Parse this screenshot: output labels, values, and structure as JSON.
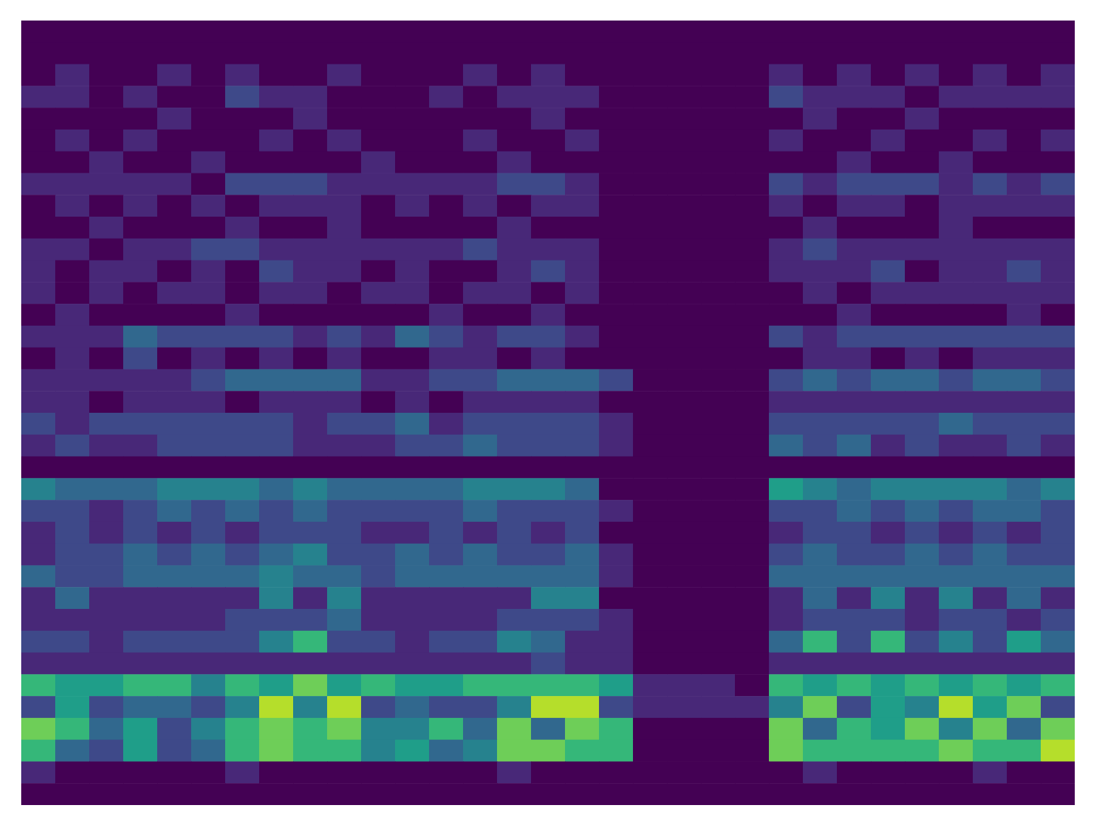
{
  "chart_data": {
    "type": "heatmap",
    "zlim": [
      0,
      9
    ],
    "tick_labels": false,
    "z": [
      [
        0,
        0,
        0,
        0,
        0,
        0,
        0,
        0,
        0,
        0,
        0,
        0,
        0,
        0,
        0,
        0,
        0,
        0,
        0,
        0,
        0,
        0,
        0,
        0,
        0,
        0,
        0,
        0,
        0,
        0,
        0
      ],
      [
        0,
        0,
        0,
        0,
        0,
        0,
        0,
        0,
        0,
        0,
        0,
        0,
        0,
        0,
        0,
        0,
        0,
        0,
        0,
        0,
        0,
        0,
        0,
        0,
        0,
        0,
        0,
        0,
        0,
        0,
        0
      ],
      [
        0,
        1,
        0,
        0,
        1,
        0,
        1,
        0,
        0,
        1,
        0,
        0,
        0,
        1,
        0,
        1,
        0,
        0,
        0,
        0,
        0,
        0,
        1,
        0,
        1,
        0,
        1,
        0,
        1,
        0,
        1
      ],
      [
        1,
        1,
        0,
        1,
        0,
        0,
        2,
        1,
        1,
        0,
        0,
        0,
        1,
        0,
        1,
        1,
        1,
        0,
        0,
        0,
        0,
        0,
        2,
        1,
        1,
        1,
        0,
        1,
        1,
        1,
        1
      ],
      [
        0,
        0,
        0,
        0,
        1,
        0,
        0,
        0,
        1,
        0,
        0,
        0,
        0,
        0,
        0,
        1,
        0,
        0,
        0,
        0,
        0,
        0,
        0,
        1,
        0,
        0,
        1,
        0,
        0,
        0,
        0
      ],
      [
        0,
        1,
        0,
        1,
        0,
        0,
        0,
        1,
        0,
        1,
        0,
        0,
        0,
        1,
        0,
        0,
        1,
        0,
        0,
        0,
        0,
        0,
        1,
        0,
        0,
        1,
        0,
        0,
        1,
        0,
        1
      ],
      [
        0,
        0,
        1,
        0,
        0,
        1,
        0,
        0,
        0,
        0,
        1,
        0,
        0,
        0,
        1,
        0,
        0,
        0,
        0,
        0,
        0,
        0,
        0,
        0,
        1,
        0,
        0,
        1,
        0,
        0,
        0
      ],
      [
        1,
        1,
        1,
        1,
        1,
        0,
        2,
        2,
        2,
        1,
        1,
        1,
        1,
        1,
        2,
        2,
        1,
        0,
        0,
        0,
        0,
        0,
        2,
        1,
        2,
        2,
        2,
        1,
        2,
        1,
        2
      ],
      [
        0,
        1,
        0,
        1,
        0,
        1,
        0,
        1,
        1,
        1,
        0,
        1,
        0,
        1,
        0,
        1,
        1,
        0,
        0,
        0,
        0,
        0,
        1,
        0,
        1,
        1,
        0,
        1,
        1,
        1,
        1
      ],
      [
        0,
        0,
        1,
        0,
        0,
        0,
        1,
        0,
        0,
        1,
        0,
        0,
        0,
        0,
        1,
        0,
        0,
        0,
        0,
        0,
        0,
        0,
        0,
        1,
        0,
        0,
        0,
        1,
        0,
        0,
        0
      ],
      [
        1,
        1,
        0,
        1,
        1,
        2,
        2,
        1,
        1,
        1,
        1,
        1,
        1,
        2,
        1,
        1,
        1,
        0,
        0,
        0,
        0,
        0,
        1,
        2,
        1,
        1,
        1,
        1,
        1,
        1,
        1
      ],
      [
        1,
        0,
        1,
        1,
        0,
        1,
        0,
        2,
        1,
        1,
        0,
        1,
        0,
        0,
        1,
        2,
        1,
        0,
        0,
        0,
        0,
        0,
        1,
        1,
        1,
        2,
        0,
        1,
        1,
        2,
        1
      ],
      [
        1,
        0,
        1,
        0,
        1,
        1,
        0,
        1,
        1,
        0,
        1,
        1,
        0,
        1,
        1,
        0,
        1,
        0,
        0,
        0,
        0,
        0,
        0,
        1,
        0,
        1,
        1,
        1,
        1,
        1,
        1
      ],
      [
        0,
        1,
        0,
        0,
        0,
        0,
        1,
        0,
        0,
        0,
        0,
        0,
        1,
        0,
        0,
        1,
        0,
        0,
        0,
        0,
        0,
        0,
        0,
        0,
        1,
        0,
        0,
        0,
        0,
        1,
        0
      ],
      [
        1,
        1,
        1,
        3,
        2,
        2,
        2,
        2,
        1,
        2,
        1,
        3,
        2,
        1,
        2,
        2,
        1,
        0,
        0,
        0,
        0,
        0,
        2,
        1,
        2,
        2,
        2,
        2,
        2,
        2,
        2
      ],
      [
        0,
        1,
        0,
        2,
        0,
        1,
        0,
        1,
        0,
        1,
        0,
        0,
        1,
        1,
        0,
        1,
        0,
        0,
        0,
        0,
        0,
        0,
        0,
        1,
        1,
        0,
        1,
        0,
        1,
        1,
        1
      ],
      [
        1,
        1,
        1,
        1,
        1,
        2,
        3,
        3,
        3,
        3,
        1,
        1,
        2,
        2,
        3,
        3,
        3,
        2,
        0,
        0,
        0,
        0,
        2,
        3,
        2,
        3,
        3,
        2,
        3,
        3,
        2
      ],
      [
        1,
        1,
        0,
        1,
        1,
        1,
        0,
        1,
        1,
        1,
        0,
        1,
        0,
        1,
        1,
        1,
        1,
        0,
        0,
        0,
        0,
        0,
        1,
        1,
        1,
        1,
        1,
        1,
        1,
        1,
        1
      ],
      [
        2,
        1,
        2,
        2,
        2,
        2,
        2,
        2,
        1,
        2,
        2,
        3,
        1,
        2,
        2,
        2,
        2,
        1,
        0,
        0,
        0,
        0,
        2,
        2,
        2,
        2,
        2,
        3,
        2,
        2,
        2
      ],
      [
        1,
        2,
        1,
        1,
        2,
        2,
        2,
        2,
        1,
        1,
        1,
        2,
        2,
        3,
        2,
        2,
        2,
        1,
        0,
        0,
        0,
        0,
        3,
        2,
        3,
        1,
        2,
        1,
        1,
        2,
        1
      ],
      [
        0,
        0,
        0,
        0,
        0,
        0,
        0,
        0,
        0,
        0,
        0,
        0,
        0,
        0,
        0,
        0,
        0,
        0,
        0,
        0,
        0,
        0,
        0,
        0,
        0,
        0,
        0,
        0,
        0,
        0,
        0
      ],
      [
        4,
        3,
        3,
        3,
        4,
        4,
        4,
        3,
        4,
        3,
        3,
        3,
        3,
        4,
        4,
        4,
        3,
        0,
        0,
        0,
        0,
        0,
        5,
        4,
        3,
        4,
        4,
        4,
        4,
        3,
        4
      ],
      [
        2,
        2,
        1,
        2,
        3,
        2,
        3,
        2,
        3,
        2,
        2,
        2,
        2,
        3,
        2,
        2,
        2,
        1,
        0,
        0,
        0,
        0,
        2,
        2,
        3,
        2,
        3,
        2,
        3,
        3,
        2
      ],
      [
        1,
        2,
        1,
        2,
        1,
        2,
        1,
        2,
        2,
        2,
        1,
        1,
        2,
        1,
        2,
        1,
        2,
        0,
        0,
        0,
        0,
        0,
        1,
        2,
        2,
        1,
        2,
        1,
        2,
        1,
        2
      ],
      [
        1,
        2,
        2,
        3,
        2,
        3,
        2,
        3,
        4,
        2,
        2,
        3,
        2,
        3,
        2,
        2,
        3,
        1,
        0,
        0,
        0,
        0,
        2,
        3,
        2,
        2,
        3,
        2,
        3,
        2,
        2
      ],
      [
        3,
        2,
        2,
        3,
        3,
        3,
        3,
        4,
        3,
        3,
        2,
        3,
        3,
        3,
        3,
        3,
        3,
        1,
        0,
        0,
        0,
        0,
        3,
        3,
        3,
        3,
        3,
        3,
        3,
        3,
        3
      ],
      [
        1,
        3,
        1,
        1,
        1,
        1,
        1,
        4,
        1,
        4,
        1,
        1,
        1,
        1,
        1,
        4,
        4,
        0,
        0,
        0,
        0,
        0,
        1,
        3,
        1,
        4,
        1,
        4,
        1,
        3,
        1
      ],
      [
        1,
        1,
        1,
        1,
        1,
        1,
        2,
        2,
        2,
        3,
        1,
        1,
        1,
        1,
        2,
        2,
        2,
        1,
        0,
        0,
        0,
        0,
        1,
        2,
        2,
        2,
        1,
        2,
        2,
        1,
        2
      ],
      [
        2,
        2,
        1,
        2,
        2,
        2,
        2,
        4,
        6,
        2,
        2,
        1,
        2,
        2,
        4,
        3,
        1,
        1,
        0,
        0,
        0,
        0,
        3,
        6,
        2,
        6,
        2,
        4,
        2,
        5,
        3
      ],
      [
        1,
        1,
        1,
        1,
        1,
        1,
        1,
        1,
        1,
        1,
        1,
        1,
        1,
        1,
        1,
        2,
        1,
        1,
        0,
        0,
        0,
        0,
        1,
        1,
        1,
        1,
        1,
        1,
        1,
        1,
        1
      ],
      [
        6,
        5,
        5,
        6,
        6,
        4,
        6,
        5,
        7,
        5,
        6,
        5,
        5,
        6,
        6,
        6,
        6,
        5,
        1,
        1,
        1,
        0,
        6,
        5,
        6,
        5,
        6,
        5,
        6,
        5,
        6
      ],
      [
        2,
        5,
        2,
        3,
        3,
        2,
        4,
        8,
        4,
        8,
        2,
        3,
        2,
        2,
        4,
        8,
        8,
        2,
        1,
        1,
        1,
        1,
        4,
        7,
        2,
        5,
        4,
        8,
        5,
        7,
        2
      ],
      [
        7,
        6,
        3,
        5,
        2,
        4,
        6,
        7,
        6,
        7,
        4,
        4,
        6,
        3,
        7,
        3,
        7,
        6,
        0,
        0,
        0,
        0,
        7,
        3,
        6,
        5,
        7,
        4,
        7,
        3,
        7
      ],
      [
        6,
        3,
        2,
        5,
        2,
        3,
        6,
        7,
        6,
        6,
        4,
        5,
        3,
        4,
        7,
        7,
        6,
        6,
        0,
        0,
        0,
        0,
        7,
        6,
        6,
        6,
        6,
        7,
        6,
        6,
        8
      ],
      [
        1,
        0,
        0,
        0,
        0,
        0,
        1,
        0,
        0,
        0,
        0,
        0,
        0,
        0,
        1,
        0,
        0,
        0,
        0,
        0,
        0,
        0,
        0,
        1,
        0,
        0,
        0,
        0,
        1,
        0,
        0
      ],
      [
        0,
        0,
        0,
        0,
        0,
        0,
        0,
        0,
        0,
        0,
        0,
        0,
        0,
        0,
        0,
        0,
        0,
        0,
        0,
        0,
        0,
        0,
        0,
        0,
        0,
        0,
        0,
        0,
        0,
        0,
        0
      ]
    ]
  }
}
